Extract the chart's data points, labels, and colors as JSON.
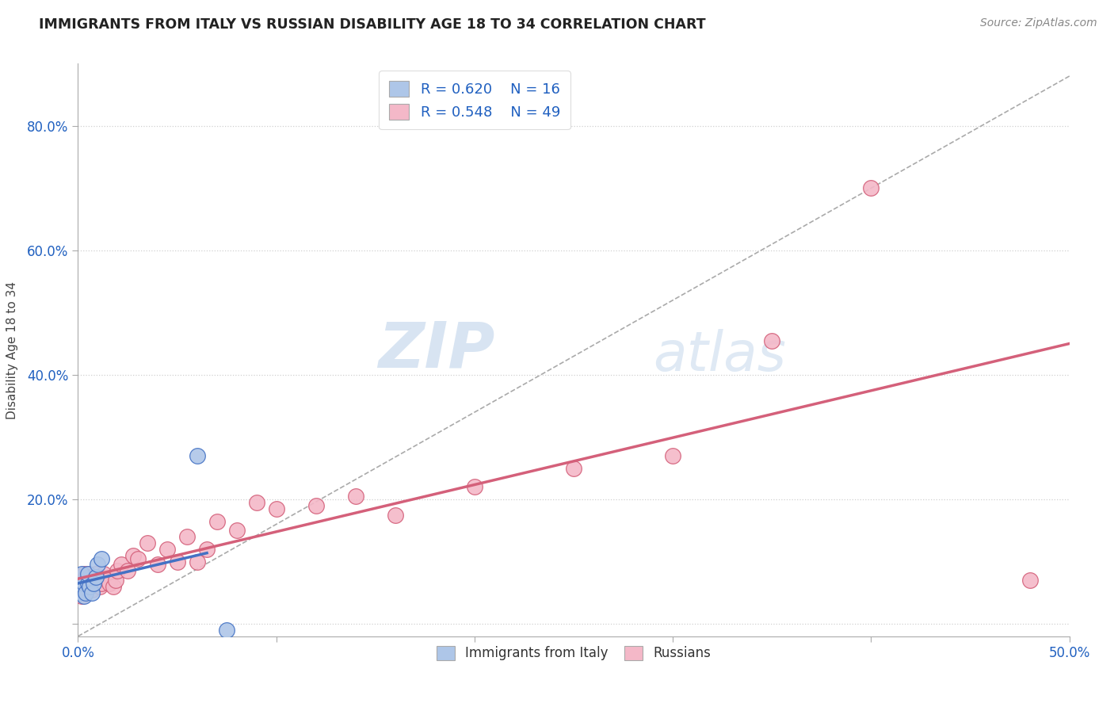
{
  "title": "IMMIGRANTS FROM ITALY VS RUSSIAN DISABILITY AGE 18 TO 34 CORRELATION CHART",
  "source_text": "Source: ZipAtlas.com",
  "ylabel": "Disability Age 18 to 34",
  "xlim": [
    0.0,
    0.5
  ],
  "ylim": [
    -0.02,
    0.9
  ],
  "italy_R": 0.62,
  "italy_N": 16,
  "russia_R": 0.548,
  "russia_N": 49,
  "italy_color": "#aec6e8",
  "italy_line_color": "#4472c4",
  "russia_color": "#f4b8c8",
  "russia_line_color": "#d4607a",
  "legend_text_color": "#2060c0",
  "watermark_zip": "ZIP",
  "watermark_atlas": "atlas",
  "background_color": "#ffffff",
  "grid_color": "#d0d0d0",
  "italy_x": [
    0.001,
    0.002,
    0.002,
    0.003,
    0.003,
    0.004,
    0.005,
    0.005,
    0.006,
    0.007,
    0.008,
    0.009,
    0.01,
    0.012,
    0.06,
    0.075
  ],
  "italy_y": [
    0.05,
    0.055,
    0.08,
    0.045,
    0.065,
    0.05,
    0.065,
    0.08,
    0.06,
    0.05,
    0.065,
    0.075,
    0.095,
    0.105,
    0.27,
    -0.01
  ],
  "russia_x": [
    0.001,
    0.001,
    0.002,
    0.002,
    0.003,
    0.003,
    0.004,
    0.004,
    0.005,
    0.005,
    0.006,
    0.006,
    0.007,
    0.007,
    0.008,
    0.009,
    0.01,
    0.011,
    0.012,
    0.013,
    0.015,
    0.016,
    0.018,
    0.019,
    0.02,
    0.022,
    0.025,
    0.028,
    0.03,
    0.035,
    0.04,
    0.045,
    0.05,
    0.055,
    0.06,
    0.065,
    0.07,
    0.08,
    0.09,
    0.1,
    0.12,
    0.14,
    0.16,
    0.2,
    0.25,
    0.3,
    0.35,
    0.4,
    0.48
  ],
  "russia_y": [
    0.06,
    0.075,
    0.045,
    0.065,
    0.06,
    0.08,
    0.055,
    0.075,
    0.065,
    0.08,
    0.06,
    0.075,
    0.055,
    0.07,
    0.065,
    0.08,
    0.07,
    0.06,
    0.065,
    0.08,
    0.07,
    0.065,
    0.06,
    0.07,
    0.085,
    0.095,
    0.085,
    0.11,
    0.105,
    0.13,
    0.095,
    0.12,
    0.1,
    0.14,
    0.1,
    0.12,
    0.165,
    0.15,
    0.195,
    0.185,
    0.19,
    0.205,
    0.175,
    0.22,
    0.25,
    0.27,
    0.455,
    0.7,
    0.07
  ],
  "diag_slope": 1.8,
  "diag_intercept": -0.02
}
